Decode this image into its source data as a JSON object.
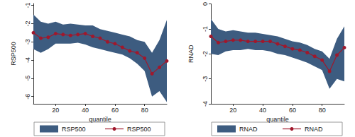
{
  "chart_data": [
    {
      "type": "line",
      "xlabel": "quantile",
      "ylabel": "RSP500",
      "grid": false,
      "legend": "bottom",
      "x": [
        5,
        10,
        15,
        20,
        25,
        30,
        35,
        40,
        45,
        50,
        55,
        60,
        65,
        70,
        75,
        80,
        85,
        90,
        95
      ],
      "xlim": [
        5,
        95
      ],
      "xticks": [
        20,
        40,
        60,
        80
      ],
      "ylim": [
        -6.4,
        -0.9
      ],
      "yticks": [
        -6,
        -5,
        -4,
        -3,
        -2,
        -1
      ],
      "series": [
        {
          "name": "RSP500",
          "type": "band",
          "color": "#3d5c80",
          "lower": [
            -3.4,
            -3.6,
            -3.4,
            -3.1,
            -3.1,
            -3.1,
            -3.05,
            -3.15,
            -3.3,
            -3.4,
            -3.5,
            -3.6,
            -3.7,
            -3.9,
            -4.2,
            -4.6,
            -6.0,
            -5.7,
            -6.3
          ],
          "upper": [
            -1.5,
            -1.9,
            -2.0,
            -1.9,
            -2.05,
            -2.0,
            -2.05,
            -2.1,
            -2.1,
            -2.3,
            -2.4,
            -2.5,
            -2.6,
            -2.7,
            -2.9,
            -3.0,
            -3.6,
            -2.9,
            -1.8
          ]
        },
        {
          "name": "RSP500",
          "type": "line",
          "color": "#a0182c",
          "marker": "circle",
          "values": [
            -2.5,
            -2.8,
            -2.75,
            -2.55,
            -2.6,
            -2.65,
            -2.6,
            -2.55,
            -2.7,
            -2.8,
            -3.0,
            -3.1,
            -3.3,
            -3.5,
            -3.6,
            -3.9,
            -4.75,
            -4.4,
            -4.05
          ]
        }
      ]
    },
    {
      "type": "line",
      "xlabel": "quantile",
      "ylabel": "RNAD",
      "grid": false,
      "legend": "bottom",
      "x": [
        5,
        10,
        15,
        20,
        25,
        30,
        35,
        40,
        45,
        50,
        55,
        60,
        65,
        70,
        75,
        80,
        85,
        90,
        95
      ],
      "xlim": [
        5,
        95
      ],
      "xticks": [
        20,
        40,
        60,
        80
      ],
      "ylim": [
        -4,
        0
      ],
      "yticks": [
        -4,
        -3,
        -2,
        -1,
        0
      ],
      "series": [
        {
          "name": "RNAD",
          "type": "band",
          "color": "#3d5c80",
          "lower": [
            -2.0,
            -2.05,
            -1.9,
            -1.85,
            -1.85,
            -1.8,
            -1.85,
            -1.85,
            -1.9,
            -2.0,
            -2.05,
            -2.15,
            -2.25,
            -2.35,
            -2.5,
            -2.65,
            -3.4,
            -3.0,
            -3.1
          ],
          "upper": [
            -0.6,
            -1.0,
            -1.1,
            -1.05,
            -1.1,
            -1.15,
            -1.15,
            -1.2,
            -1.25,
            -1.3,
            -1.4,
            -1.5,
            -1.55,
            -1.65,
            -1.8,
            -1.9,
            -2.2,
            -1.4,
            -0.9
          ]
        },
        {
          "name": "RNAD",
          "type": "line",
          "color": "#a0182c",
          "marker": "circle",
          "values": [
            -1.3,
            -1.55,
            -1.5,
            -1.45,
            -1.45,
            -1.5,
            -1.5,
            -1.5,
            -1.5,
            -1.6,
            -1.7,
            -1.8,
            -1.85,
            -1.95,
            -2.1,
            -2.25,
            -2.7,
            -2.05,
            -1.75
          ]
        }
      ]
    }
  ]
}
